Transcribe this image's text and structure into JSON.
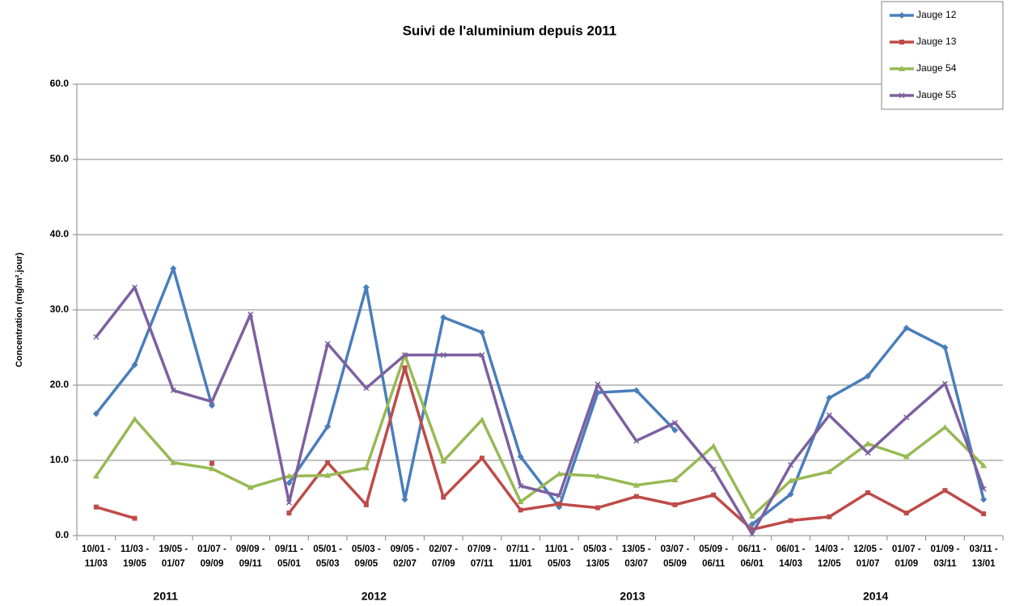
{
  "chart_data": {
    "type": "line",
    "title": "Suivi de l'aluminium depuis 2011",
    "y_label": "Concentration (mg/m².jour)",
    "categories": [
      [
        "10/01 -",
        "11/03"
      ],
      [
        "11/03 -",
        "19/05"
      ],
      [
        "19/05 -",
        "01/07"
      ],
      [
        "01/07 -",
        "09/09"
      ],
      [
        "09/09 -",
        "09/11"
      ],
      [
        "09/11 -",
        "05/01"
      ],
      [
        "05/01 -",
        "05/03"
      ],
      [
        "05/03 -",
        "09/05"
      ],
      [
        "09/05 -",
        "02/07"
      ],
      [
        "02/07 -",
        "07/09"
      ],
      [
        "07/09 -",
        "07/11"
      ],
      [
        "07/11 -",
        "11/01"
      ],
      [
        "11/01 -",
        "05/03"
      ],
      [
        "05/03 -",
        "13/05"
      ],
      [
        "13/05 -",
        "03/07"
      ],
      [
        "03/07 -",
        "05/09"
      ],
      [
        "05/09 -",
        "06/11"
      ],
      [
        "06/11 -",
        "06/01"
      ],
      [
        "06/01 -",
        "14/03"
      ],
      [
        "14/03 -",
        "12/05"
      ],
      [
        "12/05 -",
        "01/07"
      ],
      [
        "01/07 -",
        "01/09"
      ],
      [
        "01/09 -",
        "03/11"
      ],
      [
        "03/11 -",
        "13/01"
      ]
    ],
    "year_labels": [
      "2011",
      "2012",
      "2013",
      "2014"
    ],
    "series": [
      {
        "name": "Jauge 12",
        "color": "#4a7ebb",
        "marker": "diamond",
        "values": [
          16.2,
          22.7,
          35.5,
          17.3,
          null,
          7.0,
          14.5,
          33.0,
          4.8,
          29.0,
          27.0,
          10.5,
          3.8,
          19.0,
          19.3,
          14.0,
          null,
          1.5,
          5.5,
          18.3,
          21.2,
          27.6,
          25.0,
          4.8
        ]
      },
      {
        "name": "Jauge 13",
        "color": "#be4b48",
        "marker": "square",
        "values": [
          3.8,
          2.3,
          null,
          9.6,
          null,
          3.0,
          9.7,
          4.1,
          22.3,
          5.1,
          10.3,
          3.4,
          4.2,
          3.7,
          5.2,
          4.1,
          5.4,
          0.8,
          2.0,
          2.5,
          5.7,
          3.0,
          6.0,
          2.9
        ]
      },
      {
        "name": "Jauge 54",
        "color": "#98b954",
        "marker": "triangle",
        "values": [
          7.9,
          15.5,
          9.7,
          8.9,
          6.4,
          7.9,
          8.0,
          9.0,
          24.0,
          9.9,
          15.4,
          4.5,
          8.2,
          7.9,
          6.7,
          7.4,
          11.9,
          2.6,
          7.3,
          8.5,
          12.2,
          10.5,
          14.4,
          9.3
        ]
      },
      {
        "name": "Jauge 55",
        "color": "#7d60a0",
        "marker": "x",
        "values": [
          26.4,
          33.0,
          19.3,
          17.8,
          29.4,
          4.4,
          25.5,
          19.6,
          24.0,
          24.0,
          24.0,
          6.6,
          5.3,
          20.1,
          12.6,
          15.0,
          8.8,
          0.2,
          9.4,
          16.0,
          11.0,
          15.7,
          20.2,
          6.2
        ]
      }
    ],
    "ylim": [
      0,
      60
    ],
    "yticks": [
      {
        "value": 0,
        "label": "0.0"
      },
      {
        "value": 10,
        "label": "10.0"
      },
      {
        "value": 20,
        "label": "20.0"
      },
      {
        "value": 30,
        "label": "30.0"
      },
      {
        "value": 40,
        "label": "40.0"
      },
      {
        "value": 50,
        "label": "50.0"
      },
      {
        "value": 60,
        "label": "60.0"
      }
    ],
    "grid": true,
    "legend": "top-right"
  }
}
